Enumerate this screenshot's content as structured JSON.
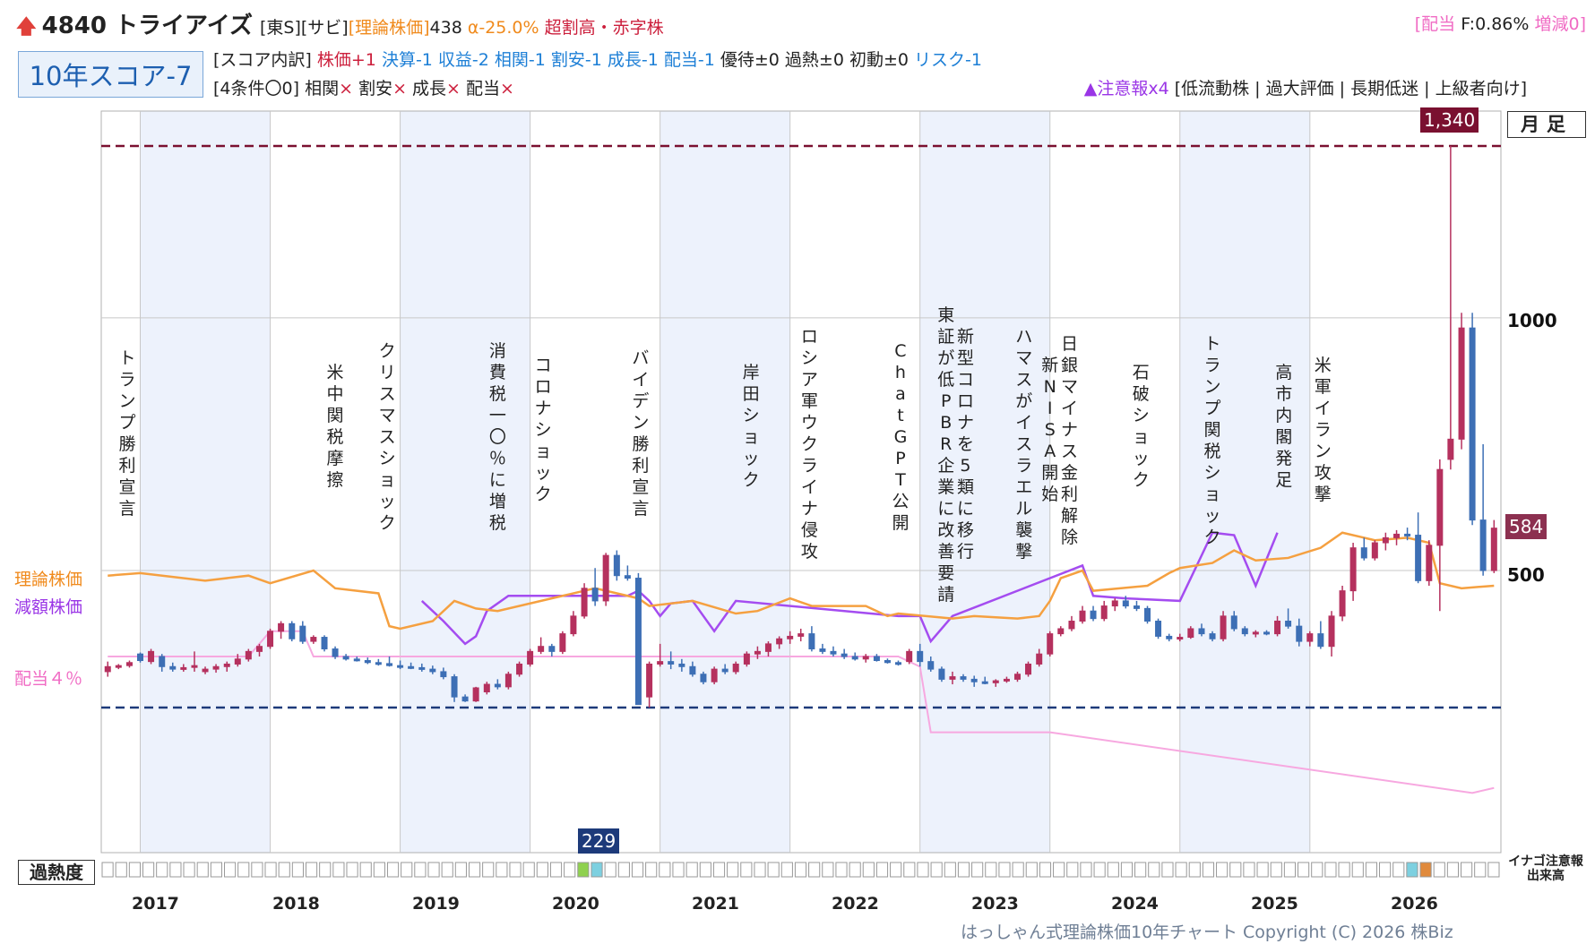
{
  "header": {
    "code_name": "4840 トライアイズ",
    "tags": "[東S][サビ]",
    "theory_label": "[理論株価]",
    "theory_value": "438",
    "alpha": "α-25.0%",
    "valuation": "超割高・赤字株",
    "dividend_prefix": "[配当",
    "dividend_yield": "F:0.86%",
    "dividend_change": "増減0]",
    "score": "10年スコア-7",
    "breakdown_label": "[スコア内訳]",
    "breakdown_price": "株価+1",
    "breakdown_blue": "決算-1 収益-2 相関-1 割安-1 成長-1 配当-1",
    "breakdown_neutral": "優待±0 過熱±0 初動±0",
    "breakdown_risk": "リスク-1",
    "conditions_label": "[4条件〇0]",
    "cond1": "相関",
    "cond2": "割安",
    "cond3": "成長",
    "cond4": "配当",
    "cross": "×",
    "warning": "▲注意報x4",
    "warning_tags": "[低流動株 | 過大評価 | 長期低迷 | 上級者向け]"
  },
  "legend": {
    "theory": "理論株価",
    "reduced": "減額株価",
    "dividend": "配当４％"
  },
  "labels": {
    "monthly": "月足",
    "max_value": "1,340",
    "last_value": "584",
    "min_value": "229",
    "heat": "過熱度",
    "inago": "イナゴ注意報",
    "volume": "出来高",
    "copyright": "はっしゃん式理論株価10年チャート Copyright (C) 2026 株Biz"
  },
  "colors": {
    "up": "#b5315e",
    "down": "#3d6fb5",
    "theory": "#f5a040",
    "reduced": "#a44cf0",
    "dividend": "#f7a8e0",
    "band": "#edf2fc",
    "top_line": "#7a1030",
    "bottom_line": "#1d3a7a"
  },
  "chart_data": {
    "type": "candlestick",
    "title": "",
    "y_ticks": [
      500,
      1000
    ],
    "y_tick_labels": [
      "500",
      "1000"
    ],
    "ylim": [
      0,
      1400
    ],
    "max_line": 1340,
    "min_line": 229,
    "x_ticks": [
      "2017",
      "2018",
      "2019",
      "2020",
      "2021",
      "2022",
      "2023",
      "2024",
      "2025",
      "2026"
    ],
    "events": [
      {
        "year": 2016.9,
        "text": "トランプ勝利宣言"
      },
      {
        "year": 2018.5,
        "text": "米中関税摩擦"
      },
      {
        "year": 2018.9,
        "text": "クリスマスショック"
      },
      {
        "year": 2019.75,
        "text": "消費税一〇％に増税"
      },
      {
        "year": 2020.1,
        "text": "コロナショック"
      },
      {
        "year": 2020.85,
        "text": "バイデン勝利宣言"
      },
      {
        "year": 2021.7,
        "text": "岸田ショック"
      },
      {
        "year": 2022.15,
        "text": "ロシア軍ウクライナ侵攻"
      },
      {
        "year": 2022.85,
        "text": "ChatGPT公開"
      },
      {
        "year": 2023.2,
        "text": "東証が低PBR企業に改善要請"
      },
      {
        "year": 2023.35,
        "text": "新型コロナを5類に移行"
      },
      {
        "year": 2023.8,
        "text": "ハマスがイスラエル襲撃"
      },
      {
        "year": 2024.0,
        "text": "新NISA開始"
      },
      {
        "year": 2024.15,
        "text": "日銀マイナス金利解除"
      },
      {
        "year": 2024.7,
        "text": "石破ショック"
      },
      {
        "year": 2025.25,
        "text": "トランプ関税ショック"
      },
      {
        "year": 2025.8,
        "text": "高市内閣発足"
      },
      {
        "year": 2026.1,
        "text": "米軍イラン攻撃"
      }
    ],
    "candles": [
      [
        2016.75,
        300,
        320,
        290,
        310
      ],
      [
        2016.833,
        310,
        315,
        305,
        312
      ],
      [
        2016.917,
        312,
        322,
        308,
        318
      ],
      [
        2017.0,
        335,
        338,
        318,
        322
      ],
      [
        2017.083,
        320,
        345,
        315,
        340
      ],
      [
        2017.167,
        330,
        335,
        300,
        310
      ],
      [
        2017.25,
        310,
        318,
        300,
        305
      ],
      [
        2017.333,
        305,
        315,
        300,
        308
      ],
      [
        2017.417,
        310,
        340,
        300,
        312
      ],
      [
        2017.5,
        300,
        310,
        295,
        305
      ],
      [
        2017.583,
        305,
        315,
        298,
        310
      ],
      [
        2017.667,
        310,
        320,
        300,
        315
      ],
      [
        2017.75,
        315,
        335,
        310,
        325
      ],
      [
        2017.833,
        325,
        345,
        320,
        340
      ],
      [
        2017.917,
        340,
        355,
        330,
        350
      ],
      [
        2018.0,
        350,
        385,
        345,
        380
      ],
      [
        2018.083,
        380,
        400,
        365,
        395
      ],
      [
        2018.167,
        395,
        400,
        360,
        365
      ],
      [
        2018.25,
        390,
        400,
        355,
        360
      ],
      [
        2018.333,
        360,
        372,
        355,
        368
      ],
      [
        2018.417,
        368,
        372,
        340,
        345
      ],
      [
        2018.5,
        345,
        350,
        325,
        330
      ],
      [
        2018.583,
        330,
        335,
        322,
        325
      ],
      [
        2018.667,
        325,
        330,
        320,
        322
      ],
      [
        2018.75,
        322,
        328,
        315,
        318
      ],
      [
        2018.833,
        318,
        325,
        312,
        316
      ],
      [
        2018.917,
        316,
        330,
        310,
        312
      ],
      [
        2019.0,
        312,
        322,
        305,
        310
      ],
      [
        2019.083,
        310,
        318,
        305,
        308
      ],
      [
        2019.167,
        308,
        316,
        300,
        305
      ],
      [
        2019.25,
        305,
        312,
        295,
        300
      ],
      [
        2019.333,
        300,
        308,
        285,
        290
      ],
      [
        2019.417,
        290,
        295,
        240,
        250
      ],
      [
        2019.5,
        250,
        255,
        240,
        242
      ],
      [
        2019.583,
        242,
        270,
        240,
        268
      ],
      [
        2019.667,
        260,
        280,
        255,
        275
      ],
      [
        2019.75,
        275,
        285,
        265,
        270
      ],
      [
        2019.833,
        270,
        300,
        265,
        295
      ],
      [
        2019.917,
        295,
        320,
        290,
        315
      ],
      [
        2020.0,
        315,
        345,
        310,
        340
      ],
      [
        2020.083,
        340,
        368,
        335,
        350
      ],
      [
        2020.167,
        350,
        355,
        330,
        340
      ],
      [
        2020.25,
        340,
        380,
        335,
        375
      ],
      [
        2020.333,
        375,
        420,
        370,
        410
      ],
      [
        2020.417,
        410,
        475,
        405,
        465
      ],
      [
        2020.5,
        465,
        505,
        430,
        440
      ],
      [
        2020.583,
        440,
        535,
        430,
        530
      ],
      [
        2020.667,
        530,
        540,
        480,
        490
      ],
      [
        2020.75,
        490,
        510,
        480,
        485
      ],
      [
        2020.833,
        485,
        495,
        240,
        235
      ],
      [
        2020.917,
        250,
        320,
        229,
        315
      ],
      [
        2021.0,
        315,
        355,
        310,
        320
      ],
      [
        2021.083,
        320,
        340,
        305,
        315
      ],
      [
        2021.167,
        315,
        325,
        300,
        310
      ],
      [
        2021.25,
        310,
        320,
        290,
        295
      ],
      [
        2021.333,
        295,
        300,
        275,
        280
      ],
      [
        2021.417,
        280,
        310,
        275,
        305
      ],
      [
        2021.5,
        305,
        315,
        295,
        300
      ],
      [
        2021.583,
        300,
        320,
        295,
        315
      ],
      [
        2021.667,
        315,
        340,
        310,
        335
      ],
      [
        2021.75,
        335,
        350,
        325,
        340
      ],
      [
        2021.833,
        340,
        360,
        330,
        355
      ],
      [
        2021.917,
        355,
        370,
        345,
        365
      ],
      [
        2022.0,
        365,
        380,
        355,
        370
      ],
      [
        2022.083,
        370,
        385,
        360,
        375
      ],
      [
        2022.167,
        375,
        390,
        340,
        345
      ],
      [
        2022.25,
        345,
        355,
        335,
        340
      ],
      [
        2022.333,
        340,
        350,
        330,
        335
      ],
      [
        2022.417,
        335,
        345,
        325,
        330
      ],
      [
        2022.5,
        330,
        338,
        322,
        325
      ],
      [
        2022.583,
        325,
        335,
        318,
        330
      ],
      [
        2022.667,
        330,
        335,
        320,
        322
      ],
      [
        2022.75,
        322,
        326,
        316,
        318
      ],
      [
        2022.833,
        318,
        322,
        312,
        316
      ],
      [
        2022.917,
        320,
        345,
        315,
        340
      ],
      [
        2023.0,
        340,
        355,
        310,
        320
      ],
      [
        2023.083,
        320,
        330,
        300,
        305
      ],
      [
        2023.167,
        305,
        310,
        280,
        285
      ],
      [
        2023.25,
        285,
        300,
        275,
        290
      ],
      [
        2023.333,
        290,
        295,
        280,
        285
      ],
      [
        2023.417,
        285,
        292,
        270,
        280
      ],
      [
        2023.5,
        280,
        290,
        275,
        278
      ],
      [
        2023.583,
        278,
        285,
        270,
        282
      ],
      [
        2023.667,
        282,
        290,
        278,
        285
      ],
      [
        2023.75,
        285,
        300,
        280,
        295
      ],
      [
        2023.833,
        295,
        320,
        290,
        315
      ],
      [
        2023.917,
        315,
        345,
        310,
        335
      ],
      [
        2024.0,
        335,
        380,
        330,
        375
      ],
      [
        2024.083,
        375,
        390,
        370,
        385
      ],
      [
        2024.167,
        385,
        410,
        380,
        400
      ],
      [
        2024.25,
        400,
        430,
        395,
        420
      ],
      [
        2024.333,
        420,
        430,
        400,
        405
      ],
      [
        2024.417,
        405,
        440,
        400,
        430
      ],
      [
        2024.5,
        430,
        445,
        420,
        440
      ],
      [
        2024.583,
        440,
        450,
        425,
        430
      ],
      [
        2024.667,
        430,
        440,
        420,
        425
      ],
      [
        2024.75,
        425,
        430,
        395,
        400
      ],
      [
        2024.833,
        400,
        405,
        365,
        370
      ],
      [
        2024.917,
        370,
        375,
        360,
        365
      ],
      [
        2025.0,
        365,
        375,
        360,
        368
      ],
      [
        2025.083,
        368,
        390,
        365,
        385
      ],
      [
        2025.167,
        385,
        395,
        370,
        375
      ],
      [
        2025.25,
        375,
        380,
        360,
        365
      ],
      [
        2025.333,
        365,
        420,
        360,
        410
      ],
      [
        2025.417,
        410,
        420,
        380,
        385
      ],
      [
        2025.5,
        385,
        390,
        370,
        375
      ],
      [
        2025.583,
        375,
        382,
        368,
        378
      ],
      [
        2025.667,
        378,
        382,
        372,
        375
      ],
      [
        2025.75,
        375,
        410,
        370,
        400
      ],
      [
        2025.833,
        400,
        425,
        385,
        390
      ],
      [
        2025.917,
        390,
        405,
        350,
        360
      ],
      [
        2026.0,
        360,
        380,
        350,
        375
      ],
      [
        2026.083,
        375,
        400,
        345,
        350
      ],
      [
        2026.167,
        350,
        420,
        330,
        410
      ],
      [
        2026.25,
        410,
        470,
        400,
        460
      ],
      [
        2026.333,
        460,
        555,
        440,
        545
      ],
      [
        2026.417,
        545,
        565,
        520,
        525
      ],
      [
        2026.5,
        525,
        560,
        520,
        555
      ],
      [
        2026.583,
        555,
        575,
        540,
        565
      ],
      [
        2026.667,
        565,
        580,
        550,
        572
      ],
      [
        2026.75,
        572,
        585,
        560,
        570
      ],
      [
        2026.833,
        570,
        615,
        475,
        480
      ],
      [
        2026.917,
        480,
        560,
        470,
        550
      ],
      [
        2027.0,
        550,
        720,
        420,
        700
      ],
      [
        2027.083,
        720,
        1340,
        700,
        760
      ],
      [
        2027.167,
        760,
        1010,
        740,
        980
      ],
      [
        2027.25,
        980,
        1010,
        590,
        600
      ],
      [
        2027.333,
        600,
        750,
        490,
        500
      ],
      [
        2027.417,
        500,
        600,
        495,
        584
      ]
    ],
    "theory_line": [
      [
        2016.75,
        490
      ],
      [
        2017.0,
        495
      ],
      [
        2017.5,
        480
      ],
      [
        2017.833,
        490
      ],
      [
        2018.0,
        475
      ],
      [
        2018.333,
        500
      ],
      [
        2018.5,
        465
      ],
      [
        2018.833,
        455
      ],
      [
        2018.917,
        390
      ],
      [
        2019.0,
        385
      ],
      [
        2019.25,
        400
      ],
      [
        2019.417,
        440
      ],
      [
        2019.583,
        425
      ],
      [
        2019.75,
        420
      ],
      [
        2020.25,
        450
      ],
      [
        2020.5,
        465
      ],
      [
        2020.833,
        445
      ],
      [
        2020.917,
        430
      ],
      [
        2021.25,
        440
      ],
      [
        2021.583,
        415
      ],
      [
        2021.75,
        420
      ],
      [
        2022.0,
        445
      ],
      [
        2022.167,
        430
      ],
      [
        2022.583,
        430
      ],
      [
        2022.75,
        410
      ],
      [
        2022.833,
        415
      ],
      [
        2023.25,
        405
      ],
      [
        2023.417,
        410
      ],
      [
        2023.75,
        405
      ],
      [
        2023.917,
        410
      ],
      [
        2024.0,
        440
      ],
      [
        2024.083,
        485
      ],
      [
        2024.25,
        500
      ],
      [
        2024.333,
        460
      ],
      [
        2024.75,
        470
      ],
      [
        2024.917,
        495
      ],
      [
        2025.0,
        505
      ],
      [
        2025.25,
        515
      ],
      [
        2025.417,
        540
      ],
      [
        2025.583,
        520
      ],
      [
        2025.833,
        525
      ],
      [
        2026.083,
        545
      ],
      [
        2026.25,
        575
      ],
      [
        2026.5,
        560
      ],
      [
        2026.75,
        565
      ],
      [
        2026.917,
        555
      ],
      [
        2027.0,
        475
      ],
      [
        2027.167,
        465
      ],
      [
        2027.417,
        470
      ]
    ],
    "reduced_line": [
      [
        2019.167,
        440
      ],
      [
        2019.333,
        400
      ],
      [
        2019.5,
        355
      ],
      [
        2019.583,
        370
      ],
      [
        2019.667,
        420
      ],
      [
        2019.833,
        450
      ],
      [
        2020.75,
        450
      ],
      [
        2020.833,
        460
      ],
      [
        2020.917,
        440
      ],
      [
        2021.0,
        410
      ],
      [
        2021.083,
        435
      ],
      [
        2021.25,
        440
      ],
      [
        2021.417,
        380
      ],
      [
        2021.583,
        440
      ],
      [
        2022.833,
        410
      ],
      [
        2023.0,
        410
      ],
      [
        2023.083,
        360
      ],
      [
        2023.25,
        410
      ],
      [
        2024.25,
        510
      ],
      [
        2024.333,
        450
      ],
      [
        2024.583,
        445
      ],
      [
        2025.0,
        440
      ],
      [
        2025.167,
        530
      ],
      [
        2025.25,
        575
      ],
      [
        2025.417,
        570
      ],
      [
        2025.583,
        470
      ],
      [
        2025.75,
        575
      ]
    ],
    "dividend_line": [
      [
        2016.75,
        330
      ],
      [
        2017.833,
        330
      ],
      [
        2018.0,
        380
      ],
      [
        2018.25,
        380
      ],
      [
        2018.333,
        330
      ],
      [
        2020.75,
        330
      ],
      [
        2022.833,
        330
      ],
      [
        2023.0,
        310
      ],
      [
        2023.083,
        180
      ],
      [
        2024.0,
        180
      ],
      [
        2027.25,
        60
      ],
      [
        2027.417,
        70
      ]
    ],
    "heat": {
      "cells": 103,
      "highlights": [
        [
          35,
          "#8fd14f"
        ],
        [
          36,
          "#7dd0e0"
        ],
        [
          96,
          "#7dd0e0"
        ],
        [
          97,
          "#e08a3c"
        ]
      ]
    }
  }
}
